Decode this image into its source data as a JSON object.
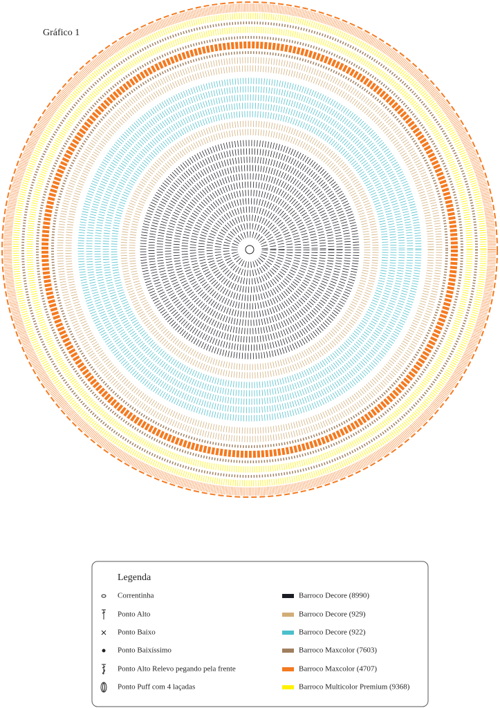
{
  "diagram": {
    "title": "Gráfico 1"
  },
  "legend": {
    "title": "Legenda",
    "stitches": [
      "Correntinha",
      "Ponto Alto",
      "Ponto Baixo",
      "Ponto Baixíssimo",
      "Ponto Alto Relevo pegando pela frente",
      "Ponto Puff com 4 laçadas"
    ],
    "yarns": [
      {
        "name": "Barroco Decore (8990)",
        "color": "#1c1c24"
      },
      {
        "name": "Barroco Decore (929)",
        "color": "#d2ad78"
      },
      {
        "name": "Barroco Decore (922)",
        "color": "#4cbfcc"
      },
      {
        "name": "Barroco Maxcolor (7603)",
        "color": "#a07f5e"
      },
      {
        "name": "Barroco Maxcolor (4707)",
        "color": "#f47a20"
      },
      {
        "name": "Barroco Multicolor Premium (9368)",
        "color": "#fff200"
      }
    ]
  }
}
